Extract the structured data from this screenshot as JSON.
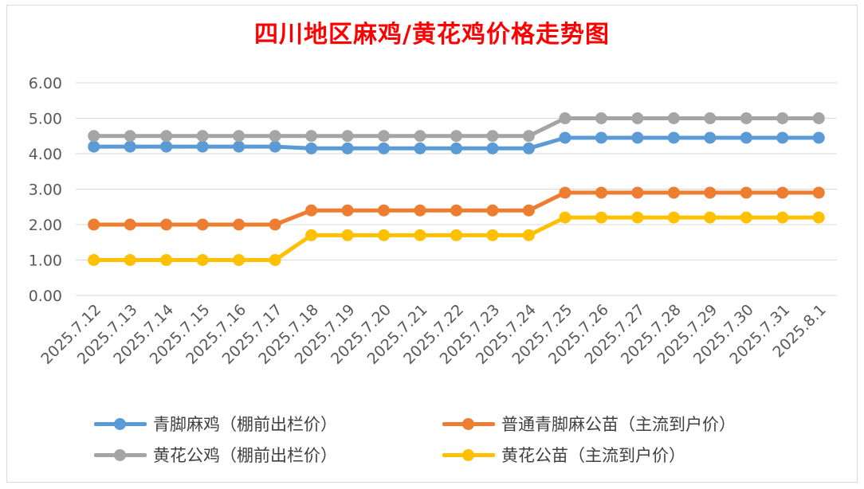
{
  "chart_data": {
    "type": "line",
    "title": "四川地区麻鸡/黄花鸡价格走势图",
    "xlabel": "",
    "ylabel": "",
    "categories": [
      "2025.7.12",
      "2025.7.13",
      "2025.7.14",
      "2025.7.15",
      "2025.7.16",
      "2025.7.17",
      "2025.7.18",
      "2025.7.19",
      "2025.7.20",
      "2025.7.21",
      "2025.7.22",
      "2025.7.23",
      "2025.7.24",
      "2025.7.25",
      "2025.7.26",
      "2025.7.27",
      "2025.7.28",
      "2025.7.29",
      "2025.7.30",
      "2025.7.31",
      "2025.8.1"
    ],
    "ylim": [
      0,
      6
    ],
    "yticks": [
      "0.00",
      "1.00",
      "2.00",
      "3.00",
      "4.00",
      "5.00",
      "6.00"
    ],
    "grid": true,
    "legend_position": "bottom",
    "series": [
      {
        "name": "青脚麻鸡（棚前出栏价）",
        "color": "#5b9bd5",
        "values": [
          4.2,
          4.2,
          4.2,
          4.2,
          4.2,
          4.2,
          4.15,
          4.15,
          4.15,
          4.15,
          4.15,
          4.15,
          4.15,
          4.45,
          4.45,
          4.45,
          4.45,
          4.45,
          4.45,
          4.45,
          4.45
        ]
      },
      {
        "name": "普通青脚麻公苗（主流到户价）",
        "color": "#ed7d31",
        "values": [
          2.0,
          2.0,
          2.0,
          2.0,
          2.0,
          2.0,
          2.4,
          2.4,
          2.4,
          2.4,
          2.4,
          2.4,
          2.4,
          2.9,
          2.9,
          2.9,
          2.9,
          2.9,
          2.9,
          2.9,
          2.9
        ]
      },
      {
        "name": "黄花公鸡（棚前出栏价）",
        "color": "#a5a5a5",
        "values": [
          4.5,
          4.5,
          4.5,
          4.5,
          4.5,
          4.5,
          4.5,
          4.5,
          4.5,
          4.5,
          4.5,
          4.5,
          4.5,
          5.0,
          5.0,
          5.0,
          5.0,
          5.0,
          5.0,
          5.0,
          5.0
        ]
      },
      {
        "name": "黄花公苗（主流到户价）",
        "color": "#ffc000",
        "values": [
          1.0,
          1.0,
          1.0,
          1.0,
          1.0,
          1.0,
          1.7,
          1.7,
          1.7,
          1.7,
          1.7,
          1.7,
          1.7,
          2.2,
          2.2,
          2.2,
          2.2,
          2.2,
          2.2,
          2.2,
          2.2
        ]
      }
    ]
  }
}
